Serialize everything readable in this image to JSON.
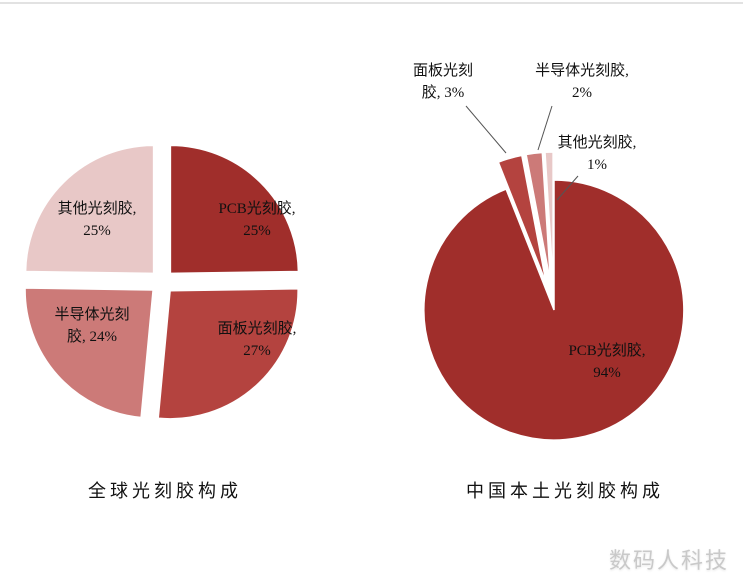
{
  "page": {
    "watermark": "数码人科技",
    "background": "#ffffff",
    "top_rule_color": "#e2e2e2",
    "text_color": "#111111"
  },
  "chart_data": [
    {
      "type": "pie",
      "title": "全球光刻胶构成",
      "exploded": true,
      "direction": "clockwise",
      "start_angle": "12-oclock",
      "labels_position": "inside",
      "slices": [
        {
          "label": "PCB光刻胶",
          "value": 25,
          "display": "PCB光刻胶, 25%",
          "color": "#A02E2B"
        },
        {
          "label": "面板光刻胶",
          "value": 27,
          "display": "面板光刻胶, 27%",
          "color": "#B4433F"
        },
        {
          "label": "半导体光刻胶",
          "value": 24,
          "display": "半导体光刻胶, 24%",
          "color": "#CC7A78"
        },
        {
          "label": "其他光刻胶",
          "value": 25,
          "display": "其他光刻胶, 25%",
          "color": "#E8C8C7"
        }
      ]
    },
    {
      "type": "pie",
      "title": "中国本土光刻胶构成",
      "exploded": "minor-slices-only",
      "direction": "clockwise",
      "start_angle": "12-oclock",
      "labels_position": "outside-with-leader-lines-for-minor-slices",
      "slices": [
        {
          "label": "PCB光刻胶",
          "value": 94,
          "display": "PCB光刻胶, 94%",
          "color": "#A02E2B"
        },
        {
          "label": "面板光刻胶",
          "value": 3,
          "display": "面板光刻胶, 3%",
          "color": "#B4433F"
        },
        {
          "label": "半导体光刻胶",
          "value": 2,
          "display": "半导体光刻胶, 2%",
          "color": "#CC7A78"
        },
        {
          "label": "其他光刻胶",
          "value": 1,
          "display": "其他光刻胶, 1%",
          "color": "#E8C8C7"
        }
      ]
    }
  ]
}
